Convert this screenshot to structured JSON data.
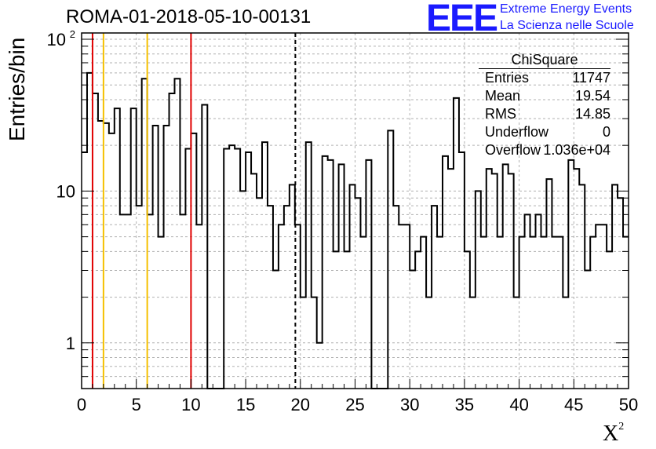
{
  "title": "ROMA-01-2018-05-10-00131",
  "logo": {
    "text": "EEE",
    "line1": "Extreme Energy Events",
    "line2": "La Scienza nelle Scuole",
    "color": "#1a1aff"
  },
  "stats": {
    "title": "ChiSquare",
    "rows": [
      {
        "k": "Entries",
        "v": "11747"
      },
      {
        "k": "Mean",
        "v": "19.54"
      },
      {
        "k": "RMS",
        "v": "14.85"
      },
      {
        "k": "Underflow",
        "v": "0"
      },
      {
        "k": "Overflow",
        "v": "1.036e+04"
      }
    ]
  },
  "chart_data": {
    "type": "histogram",
    "title": "ROMA-01-2018-05-10-00131",
    "xlabel": "X",
    "xlabel_sup": "2",
    "ylabel": "Entries/bin",
    "xlim": [
      0,
      50
    ],
    "ylim": [
      0.5,
      110
    ],
    "yscale": "log",
    "grid": true,
    "bin_width": 0.5,
    "xticks": [
      "0",
      "5",
      "10",
      "15",
      "20",
      "25",
      "30",
      "35",
      "40",
      "45",
      "50"
    ],
    "yticks": [
      {
        "value": 1,
        "label": "1"
      },
      {
        "value": 10,
        "label": "10"
      },
      {
        "value": 100,
        "label": "10",
        "sup": "2"
      }
    ],
    "values": [
      18,
      60,
      44,
      29,
      28,
      24,
      35,
      7,
      7,
      35,
      8,
      55,
      7,
      27,
      5,
      27,
      44,
      55,
      7,
      19,
      24,
      6,
      37,
      0,
      0,
      0,
      19,
      20,
      19,
      10,
      18,
      13,
      9,
      21,
      8,
      3,
      6,
      8,
      11,
      6,
      2,
      21,
      2,
      1,
      17,
      16,
      4,
      15,
      4,
      11,
      9,
      5,
      16,
      0,
      0,
      0,
      25,
      8,
      6,
      6,
      3,
      4,
      5,
      2,
      8,
      5,
      17,
      14,
      41,
      18,
      4,
      2,
      10,
      5,
      14,
      13,
      5,
      15,
      13,
      2,
      5,
      7,
      5,
      7,
      5,
      12,
      5,
      5,
      2,
      16,
      14,
      11,
      3,
      5,
      6,
      6,
      4,
      11,
      9,
      5
    ],
    "vlines": [
      {
        "x": 1,
        "color": "#e00000",
        "style": "solid"
      },
      {
        "x": 2,
        "color": "#f5c000",
        "style": "solid"
      },
      {
        "x": 6,
        "color": "#f5c000",
        "style": "solid"
      },
      {
        "x": 10,
        "color": "#e00000",
        "style": "solid"
      },
      {
        "x": 19.54,
        "color": "#000000",
        "style": "dashed"
      }
    ]
  }
}
